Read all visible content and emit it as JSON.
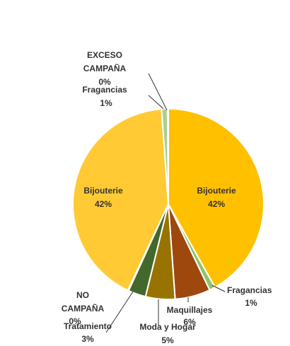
{
  "chart_data": {
    "type": "pie",
    "title": "",
    "slices": [
      {
        "name": "Bijouterie",
        "value": 42,
        "pct": "42%",
        "color": "#FFC000"
      },
      {
        "name": "Fragancias",
        "value": 1,
        "pct": "1%",
        "color": "#8FC46A"
      },
      {
        "name": "Maquillajes",
        "value": 6,
        "pct": "6%",
        "color": "#9E480E"
      },
      {
        "name": "Moda y Hogar",
        "value": 5,
        "pct": "5%",
        "color": "#997300"
      },
      {
        "name": "Tratamiento",
        "value": 3,
        "pct": "3%",
        "color": "#43682B"
      },
      {
        "name": "NO CAMPAÑA",
        "value": 0,
        "pct": "0%",
        "color": "#70AD47"
      },
      {
        "name": "Bijouterie",
        "value": 42,
        "pct": "42%",
        "color": "#FFCA33"
      },
      {
        "name": "Fragancias",
        "value": 1,
        "pct": "1%",
        "color": "#A9D08E"
      },
      {
        "name": "EXCESO CAMPAÑA",
        "value": 0,
        "pct": "0%",
        "color": "#FFD966"
      }
    ],
    "legend": "none"
  }
}
